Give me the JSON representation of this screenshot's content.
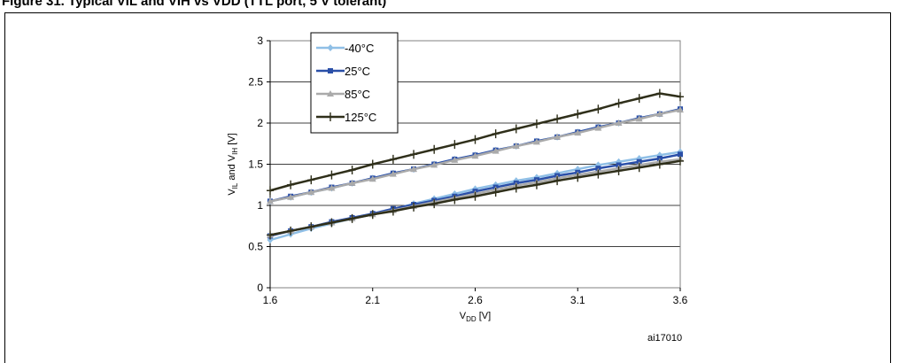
{
  "caption": "Figure 31. Typical VIL and VIH vs VDD (TTL port, 5 V tolerant)",
  "figure_id": "ai17010",
  "colors": {
    "minus40": "#8fbfe6",
    "plus25": "#2a4fa8",
    "plus85": "#aaaaaa",
    "plus125": "#2f2f1a"
  },
  "chart_data": {
    "type": "line",
    "xlabel": {
      "main": "V",
      "sub": "DD",
      "unit": " [V]"
    },
    "ylabel": {
      "p1": "V",
      "s1": "IL",
      "p2": " and V",
      "s2": "IH",
      "unit": " [V]"
    },
    "xlim": [
      1.6,
      3.6
    ],
    "ylim": [
      0,
      3
    ],
    "x_ticks": [
      "1.6",
      "2.1",
      "2.6",
      "3.1",
      "3.6"
    ],
    "y_ticks": [
      "0",
      "0.5",
      "1",
      "1.5",
      "2",
      "2.5",
      "3"
    ],
    "grid": "horizontal",
    "legend_position": "top-left",
    "x": [
      1.6,
      1.7,
      1.8,
      1.9,
      2.0,
      2.1,
      2.2,
      2.3,
      2.4,
      2.5,
      2.6,
      2.7,
      2.8,
      2.9,
      3.0,
      3.1,
      3.2,
      3.3,
      3.4,
      3.5,
      3.6
    ],
    "series": [
      {
        "name": "-40°C",
        "marker": "diamond",
        "color_key": "minus40",
        "values": [
          0.58,
          0.65,
          0.72,
          0.78,
          0.84,
          0.89,
          0.95,
          1.02,
          1.08,
          1.14,
          1.2,
          1.25,
          1.3,
          1.34,
          1.39,
          1.44,
          1.49,
          1.53,
          1.57,
          1.61,
          1.65
        ]
      },
      {
        "name": "25°C",
        "marker": "square",
        "color_key": "plus25",
        "values": [
          0.63,
          0.69,
          0.74,
          0.8,
          0.85,
          0.9,
          0.96,
          1.01,
          1.06,
          1.11,
          1.17,
          1.22,
          1.27,
          1.31,
          1.36,
          1.4,
          1.45,
          1.49,
          1.53,
          1.57,
          1.62
        ]
      },
      {
        "name": "85°C",
        "marker": "triangle",
        "color_key": "plus85",
        "values": [
          0.64,
          0.69,
          0.74,
          0.79,
          0.84,
          0.89,
          0.94,
          0.99,
          1.04,
          1.09,
          1.14,
          1.19,
          1.24,
          1.28,
          1.33,
          1.37,
          1.41,
          1.45,
          1.49,
          1.53,
          1.56
        ]
      },
      {
        "name": "125°C",
        "marker": "plus",
        "color_key": "plus125",
        "values": [
          0.64,
          0.69,
          0.74,
          0.79,
          0.84,
          0.89,
          0.93,
          0.98,
          1.02,
          1.07,
          1.11,
          1.16,
          1.21,
          1.25,
          1.3,
          1.34,
          1.38,
          1.42,
          1.46,
          1.5,
          1.54
        ]
      },
      {
        "name": "-40°C",
        "marker": "diamond",
        "color_key": "minus40",
        "in_legend": false,
        "values": [
          1.05,
          1.1,
          1.16,
          1.21,
          1.27,
          1.33,
          1.39,
          1.44,
          1.5,
          1.56,
          1.61,
          1.67,
          1.72,
          1.78,
          1.83,
          1.89,
          1.95,
          2.0,
          2.06,
          2.11,
          2.17
        ]
      },
      {
        "name": "25°C",
        "marker": "square",
        "color_key": "plus25",
        "in_legend": false,
        "values": [
          1.05,
          1.11,
          1.16,
          1.22,
          1.27,
          1.33,
          1.39,
          1.44,
          1.5,
          1.56,
          1.61,
          1.67,
          1.72,
          1.78,
          1.83,
          1.89,
          1.95,
          2.0,
          2.06,
          2.11,
          2.17
        ]
      },
      {
        "name": "85°C",
        "marker": "triangle",
        "color_key": "plus85",
        "in_legend": false,
        "values": [
          1.05,
          1.1,
          1.16,
          1.21,
          1.27,
          1.32,
          1.38,
          1.44,
          1.49,
          1.55,
          1.6,
          1.66,
          1.72,
          1.77,
          1.83,
          1.88,
          1.94,
          2.0,
          2.05,
          2.11,
          2.16
        ]
      },
      {
        "name": "125°C",
        "marker": "plus",
        "color_key": "plus125",
        "in_legend": false,
        "values": [
          1.18,
          1.25,
          1.31,
          1.37,
          1.43,
          1.5,
          1.56,
          1.62,
          1.68,
          1.74,
          1.8,
          1.87,
          1.93,
          1.99,
          2.05,
          2.11,
          2.17,
          2.24,
          2.3,
          2.36,
          2.32
        ]
      }
    ]
  }
}
